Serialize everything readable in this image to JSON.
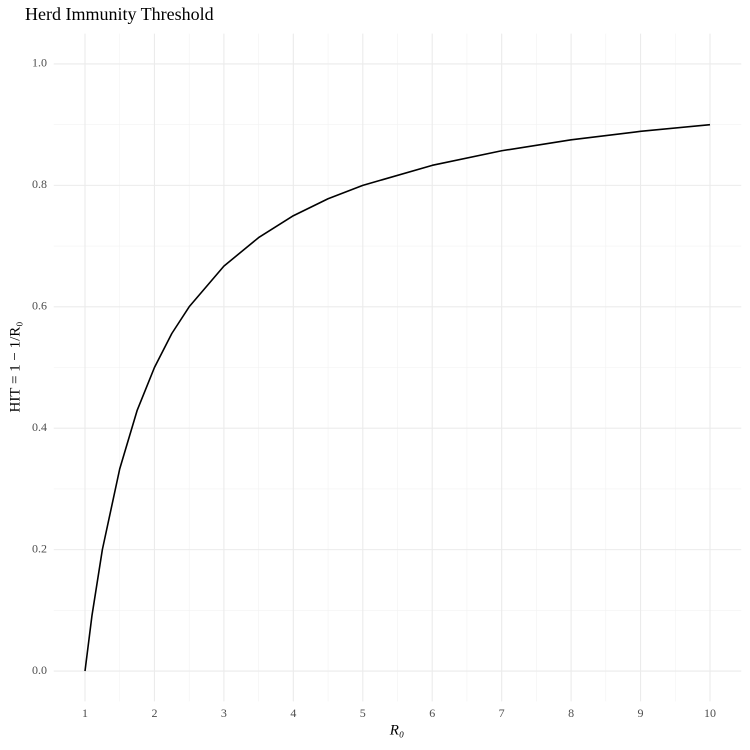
{
  "chart_data": {
    "type": "line",
    "title": "Herd Immunity Threshold",
    "x_label": "R₀",
    "y_label": "HIT = 1 − 1/R₀",
    "x": [
      1,
      1.1,
      1.25,
      1.5,
      1.75,
      2,
      2.25,
      2.5,
      3,
      3.5,
      4,
      4.5,
      5,
      6,
      7,
      8,
      9,
      10
    ],
    "values": [
      0,
      0.091,
      0.2,
      0.333,
      0.429,
      0.5,
      0.556,
      0.6,
      0.667,
      0.714,
      0.75,
      0.778,
      0.8,
      0.833,
      0.857,
      0.875,
      0.889,
      0.9
    ],
    "color": "#000000",
    "xlim": [
      0.55,
      10.45
    ],
    "ylim": [
      -0.05,
      1.05
    ],
    "xticks": [
      1,
      2,
      3,
      4,
      5,
      6,
      7,
      8,
      9,
      10
    ],
    "yticks": [
      {
        "value": 0,
        "label": "0.0"
      },
      0.2,
      0.4,
      0.6,
      0.8,
      {
        "value": 1,
        "label": "1.0"
      }
    ],
    "minor_xticks": [
      1.5,
      2.5,
      3.5,
      4.5,
      5.5,
      6.5,
      7.5,
      8.5,
      9.5
    ],
    "minor_yticks": [
      0.1,
      0.3,
      0.5,
      0.7,
      0.9
    ],
    "grid": true
  }
}
